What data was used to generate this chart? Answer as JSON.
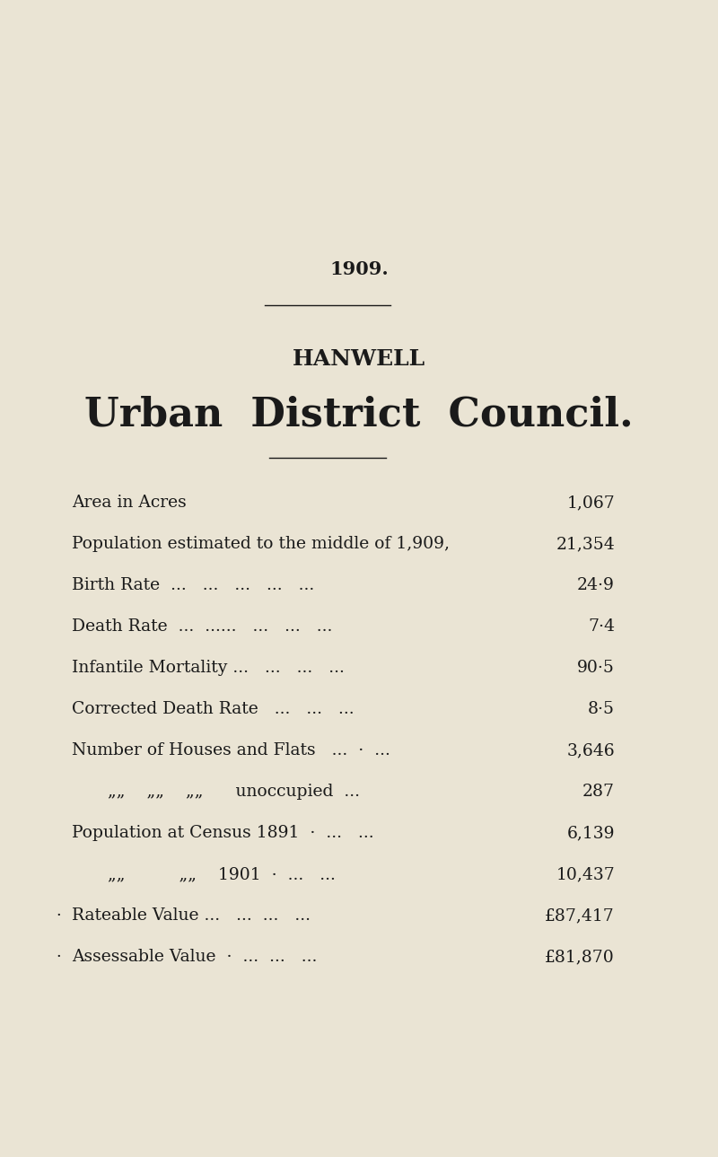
{
  "year": "1909.",
  "title_line1": "HANWELL",
  "title_line2": "Urban  District  Council.",
  "bg_color": "#EAE4D4",
  "text_color": "#1a1a1a",
  "rows": [
    {
      "label": "Area in Acres",
      "dots": "...    ...    ...    ...",
      "value": "1,067",
      "indent": 0,
      "dot_prefix": false
    },
    {
      "label": "Population estimated to the middle of 1,909,",
      "dots": "",
      "value": "21,354",
      "indent": 0,
      "dot_prefix": false
    },
    {
      "label": "Birth Rate  ...   ...   ...   ...   ...",
      "dots": "",
      "value": "24·9",
      "indent": 0,
      "dot_prefix": false
    },
    {
      "label": "Death Rate  ...  ......   ...   ...   ...",
      "dots": "",
      "value": "7·4",
      "indent": 0,
      "dot_prefix": false
    },
    {
      "label": "Infantile Mortality ...   ...   ...   ...",
      "dots": "",
      "value": "90·5",
      "indent": 0,
      "dot_prefix": false
    },
    {
      "label": "Corrected Death Rate   ...   ...   ...",
      "dots": "",
      "value": "8·5",
      "indent": 0,
      "dot_prefix": false
    },
    {
      "label": "Number of Houses and Flats   ...  ·  ...",
      "dots": "",
      "value": "3,646",
      "indent": 0,
      "dot_prefix": false
    },
    {
      "label": "„„    „„    „„      unoccupied  ...",
      "dots": "",
      "value": "287",
      "indent": 40,
      "dot_prefix": false
    },
    {
      "label": "Population at Census 1891  ·  ...   ...",
      "dots": "",
      "value": "6,139",
      "indent": 0,
      "dot_prefix": false
    },
    {
      "label": "„„          „„    1901  ·  ...   ...",
      "dots": "",
      "value": "10,437",
      "indent": 40,
      "dot_prefix": false
    },
    {
      "label": "Rateable Value ...   ...  ...   ...",
      "dots": "",
      "value": "£87,417",
      "indent": 0,
      "dot_prefix": true
    },
    {
      "label": "Assessable Value  ·  ...  ...   ...",
      "dots": "",
      "value": "£81,870",
      "indent": 0,
      "dot_prefix": true
    }
  ]
}
